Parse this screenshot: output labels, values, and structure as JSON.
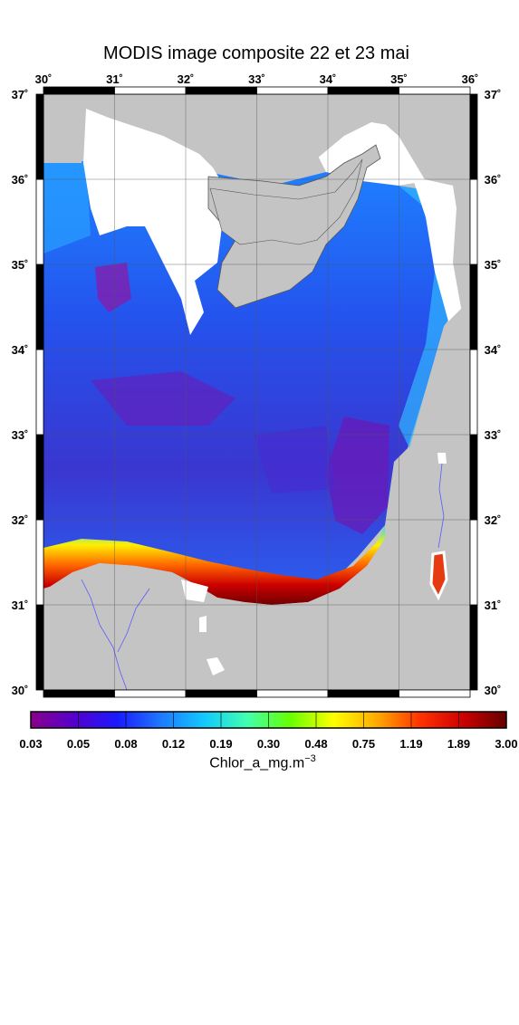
{
  "title": "MODIS image composite 22 et 23 mai",
  "map": {
    "lon_ticks": [
      "30",
      "31",
      "32",
      "33",
      "34",
      "35",
      "36"
    ],
    "lat_ticks": [
      "37",
      "36",
      "35",
      "34",
      "33",
      "32",
      "31",
      "30"
    ],
    "degree_symbol": "˚",
    "lon_range": [
      30,
      36
    ],
    "lat_range": [
      30,
      37
    ],
    "colors": {
      "land": "#c4c4c4",
      "cloud": "#ffffff",
      "frame": "#000000",
      "river": "#5a5aff"
    }
  },
  "colorbar": {
    "labels": [
      "0.03",
      "0.05",
      "0.08",
      "0.12",
      "0.19",
      "0.30",
      "0.48",
      "0.75",
      "1.19",
      "1.89",
      "3.00"
    ],
    "title_main": "Chlor_a_mg.m",
    "title_sup": "−3",
    "scale": "log",
    "range": [
      0.03,
      3.0
    ],
    "stops": [
      "#8a008a",
      "#5500cc",
      "#1a1aff",
      "#1e78ff",
      "#12c8ff",
      "#40ffb0",
      "#66ff00",
      "#ffff00",
      "#ffaa00",
      "#ff3300",
      "#cc0000",
      "#660000"
    ]
  }
}
